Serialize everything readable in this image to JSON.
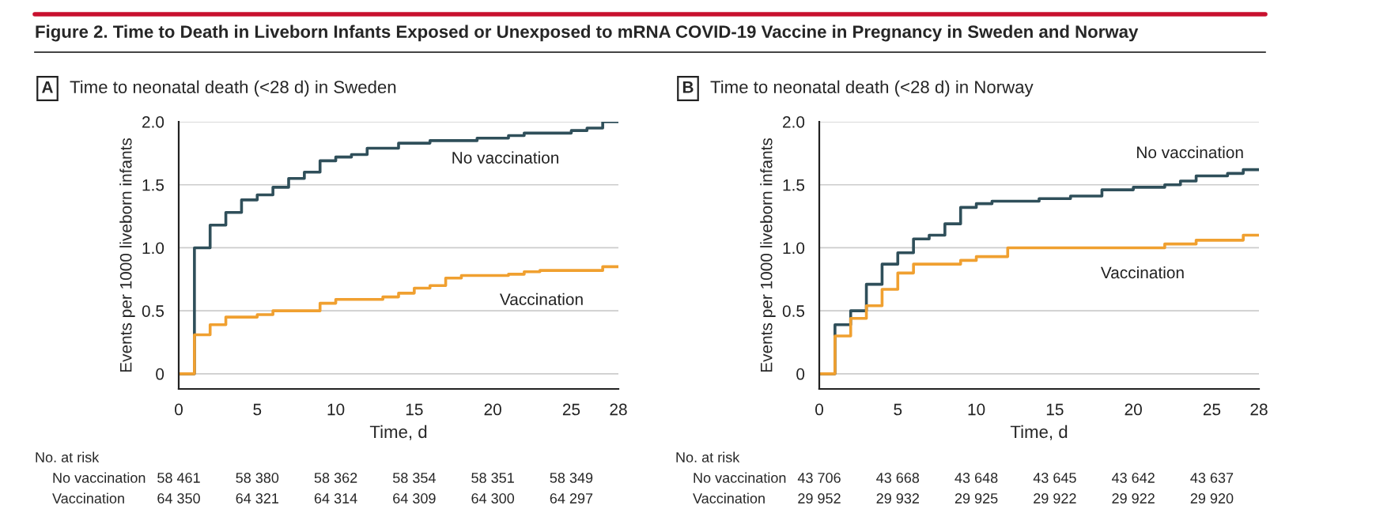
{
  "chart_data": [
    {
      "type": "step",
      "title": "Time to neonatal death (<28 d) in Sweden",
      "xlabel": "Time, d",
      "ylabel": "Events per 1000 liveborn infants",
      "xlim": [
        0,
        28
      ],
      "xticks": [
        0,
        5,
        10,
        15,
        20,
        25,
        28
      ],
      "ylim": [
        -0.12,
        2.0
      ],
      "yticks": [
        {
          "value": 0,
          "label": "0"
        },
        {
          "value": 0.5,
          "label": "0.5"
        },
        {
          "value": 1.0,
          "label": "1.0"
        },
        {
          "value": 1.5,
          "label": "1.5"
        },
        {
          "value": 2.0,
          "label": "2.0"
        }
      ],
      "grid": "y",
      "legend": false,
      "series": [
        {
          "name": "No vaccination",
          "color": "#2f4f5a",
          "x": [
            0,
            1,
            2,
            3,
            4,
            5,
            6,
            7,
            8,
            9,
            10,
            11,
            12,
            14,
            16,
            19,
            21,
            22,
            25,
            26,
            27,
            28
          ],
          "values": [
            0,
            1.0,
            1.18,
            1.28,
            1.38,
            1.42,
            1.48,
            1.55,
            1.6,
            1.69,
            1.72,
            1.74,
            1.79,
            1.83,
            1.85,
            1.87,
            1.89,
            1.91,
            1.93,
            1.95,
            2.0,
            2.0
          ]
        },
        {
          "name": "Vaccination",
          "color": "#f0a030",
          "x": [
            0,
            1,
            2,
            3,
            5,
            6,
            9,
            10,
            13,
            14,
            15,
            16,
            17,
            18,
            21,
            22,
            23,
            27,
            28
          ],
          "values": [
            0,
            0.31,
            0.39,
            0.45,
            0.47,
            0.5,
            0.56,
            0.59,
            0.61,
            0.64,
            0.68,
            0.7,
            0.76,
            0.78,
            0.79,
            0.81,
            0.82,
            0.85,
            0.85
          ]
        }
      ],
      "annotations": [
        "Figure 2. Time to Death in Liveborn Infants Exposed or Unexposed to mRNA COVID-19 Vaccine in Pregnancy in Sweden and Norway",
        "A",
        "No. at risk",
        "No vaccination",
        "58 461",
        "58 380",
        "58 362",
        "58 354",
        "58 351",
        "58 349",
        "Vaccination",
        "64 350",
        "64 321",
        "64 314",
        "64 309",
        "64 300",
        "64 297"
      ]
    },
    {
      "type": "step",
      "title": "Time to neonatal death (<28 d) in Norway",
      "xlabel": "Time, d",
      "ylabel": "Events per 1000 liveborn infants",
      "xlim": [
        0,
        28
      ],
      "xticks": [
        0,
        5,
        10,
        15,
        20,
        25,
        28
      ],
      "ylim": [
        -0.12,
        2.0
      ],
      "yticks": [
        {
          "value": 0,
          "label": "0"
        },
        {
          "value": 0.5,
          "label": "0.5"
        },
        {
          "value": 1.0,
          "label": "1.0"
        },
        {
          "value": 1.5,
          "label": "1.5"
        },
        {
          "value": 2.0,
          "label": "2.0"
        }
      ],
      "grid": "y",
      "legend": false,
      "series": [
        {
          "name": "No vaccination",
          "color": "#2f4f5a",
          "x": [
            0,
            1,
            2,
            3,
            4,
            5,
            6,
            7,
            8,
            9,
            10,
            11,
            14,
            16,
            18,
            20,
            22,
            23,
            24,
            26,
            27,
            28
          ],
          "values": [
            0,
            0.39,
            0.5,
            0.71,
            0.87,
            0.96,
            1.07,
            1.1,
            1.19,
            1.32,
            1.35,
            1.37,
            1.39,
            1.41,
            1.46,
            1.48,
            1.5,
            1.53,
            1.57,
            1.59,
            1.62,
            1.62
          ]
        },
        {
          "name": "Vaccination",
          "color": "#f0a030",
          "x": [
            0,
            1,
            2,
            3,
            4,
            5,
            6,
            9,
            10,
            12,
            22,
            24,
            27,
            28
          ],
          "values": [
            0,
            0.3,
            0.44,
            0.54,
            0.67,
            0.8,
            0.87,
            0.9,
            0.93,
            1.0,
            1.03,
            1.06,
            1.1,
            1.1
          ]
        }
      ],
      "annotations": [
        "B",
        "No. at risk",
        "No vaccination",
        "43 706",
        "43 668",
        "43 648",
        "43 645",
        "43 642",
        "43 637",
        "Vaccination",
        "29 952",
        "29 932",
        "29 925",
        "29 922",
        "29 922",
        "29 920"
      ]
    }
  ]
}
